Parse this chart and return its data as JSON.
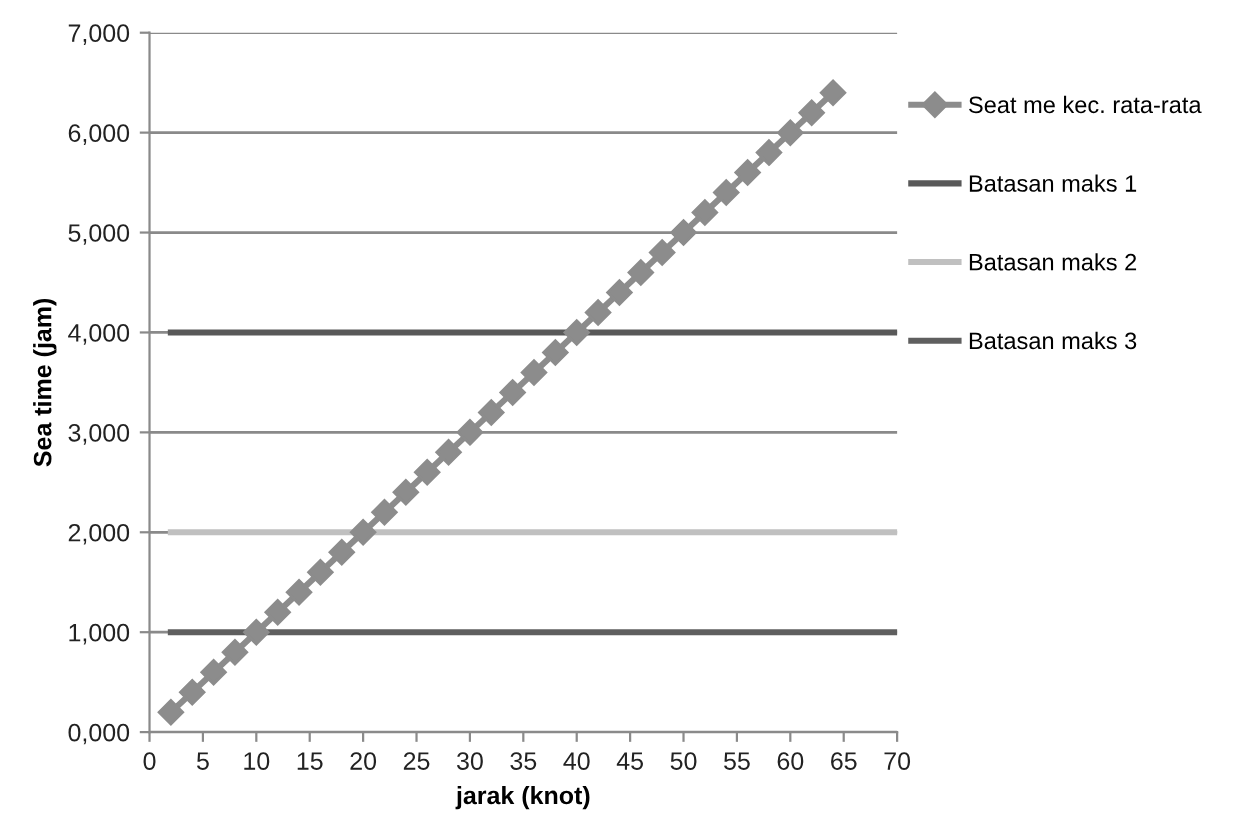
{
  "chart_data": {
    "type": "line",
    "xlabel": "jarak (knot)",
    "ylabel": "Sea time (jam)",
    "xlim": [
      0,
      70
    ],
    "xticks": [
      0,
      5,
      10,
      15,
      20,
      25,
      30,
      35,
      40,
      45,
      50,
      55,
      60,
      65,
      70
    ],
    "ylim": [
      0,
      7000
    ],
    "yticks": [
      {
        "value": 0,
        "label": "0,000"
      },
      {
        "value": 1000,
        "label": "1,000"
      },
      {
        "value": 2000,
        "label": "2,000"
      },
      {
        "value": 3000,
        "label": "3,000"
      },
      {
        "value": 4000,
        "label": "4,000"
      },
      {
        "value": 5000,
        "label": "5,000"
      },
      {
        "value": 6000,
        "label": "6,000"
      },
      {
        "value": 7000,
        "label": "7,000"
      }
    ],
    "grid": "y",
    "legend": "right",
    "series": [
      {
        "name": "Batasan maks 1",
        "color": "#595959",
        "marker": "none",
        "x": [
          2,
          70
        ],
        "values": [
          4000,
          4000
        ]
      },
      {
        "name": "Batasan maks 2",
        "color": "#c0c0c0",
        "marker": "none",
        "x": [
          2,
          70
        ],
        "values": [
          2000,
          2000
        ]
      },
      {
        "name": "Batasan maks 3",
        "color": "#5f5f5f",
        "marker": "none",
        "x": [
          2,
          70
        ],
        "values": [
          1000,
          1000
        ]
      },
      {
        "name": "Seat me kec. rata-rata",
        "color": "#8c8c8c",
        "marker": "diamond",
        "x": [
          2,
          4,
          6,
          8,
          10,
          12,
          14,
          16,
          18,
          20,
          22,
          24,
          26,
          28,
          30,
          32,
          34,
          36,
          38,
          40,
          42,
          44,
          46,
          48,
          50,
          52,
          54,
          56,
          58,
          60,
          62,
          64
        ],
        "values": [
          200,
          400,
          600,
          800,
          1000,
          1200,
          1400,
          1600,
          1800,
          2000,
          2200,
          2400,
          2600,
          2800,
          3000,
          3200,
          3400,
          3600,
          3800,
          4000,
          4200,
          4400,
          4600,
          4800,
          5000,
          5200,
          5400,
          5600,
          5800,
          6000,
          6200,
          6400
        ]
      }
    ]
  }
}
